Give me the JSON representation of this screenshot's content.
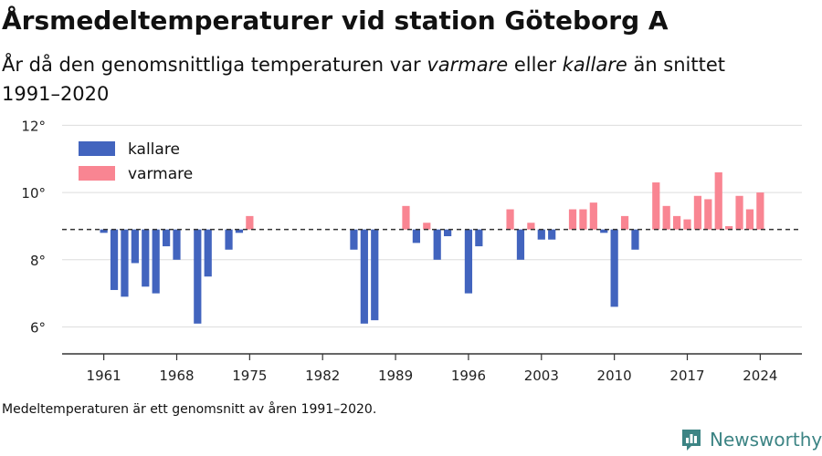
{
  "header": {
    "title": "Årsmedeltemperaturer vid station Göteborg A",
    "subtitle_parts": [
      "År då den genomsnittliga temperaturen var ",
      "varmare",
      " eller ",
      "kallare",
      " än snittet 1991–2020"
    ]
  },
  "footer": {
    "note": "Medeltemperaturen är ett genomsnitt av åren 1991–2020.",
    "brand": "Newsworthy"
  },
  "colors": {
    "kallare": "#4264be",
    "varmare": "#f98592",
    "grid": "#dddddd",
    "axis": "#333333",
    "brand": "#3c8484"
  },
  "icons": {
    "brand_logo": "bar-chart-logo-icon"
  },
  "chart_data": {
    "type": "bar",
    "title": "Årsmedeltemperaturer vid station Göteborg A",
    "baseline": 8.9,
    "baseline_style": "dashed",
    "ylim": [
      5.2,
      12.2
    ],
    "yticks": [
      6,
      8,
      10,
      12
    ],
    "ytick_labels": [
      "6°",
      "8°",
      "10°",
      "12°"
    ],
    "xlim": [
      1957,
      2028
    ],
    "xticks": [
      1961,
      1968,
      1975,
      1982,
      1989,
      1996,
      2003,
      2010,
      2017,
      2024
    ],
    "xtick_labels": [
      "1961",
      "1968",
      "1975",
      "1982",
      "1989",
      "1996",
      "2003",
      "2010",
      "2017",
      "2024"
    ],
    "grid": true,
    "legend": {
      "position": "top-left",
      "entries": [
        {
          "name": "kallare",
          "color": "#4264be"
        },
        {
          "name": "varmare",
          "color": "#f98592"
        }
      ]
    },
    "series": [
      {
        "name": "kallare",
        "x": [
          1961,
          1962,
          1963,
          1964,
          1965,
          1966,
          1967,
          1968,
          1970,
          1971,
          1973,
          1974,
          1985,
          1986,
          1987,
          1991,
          1993,
          1994,
          1996,
          1997,
          2001,
          2003,
          2004,
          2009,
          2010,
          2012
        ],
        "values": [
          8.8,
          7.1,
          6.9,
          7.9,
          7.2,
          7.0,
          8.4,
          8.0,
          6.1,
          7.5,
          8.3,
          8.8,
          8.3,
          6.1,
          6.2,
          8.5,
          8.0,
          8.7,
          7.0,
          8.4,
          8.0,
          8.6,
          8.6,
          8.8,
          6.6,
          8.3
        ]
      },
      {
        "name": "varmare",
        "x": [
          1975,
          1990,
          1992,
          2000,
          2002,
          2006,
          2007,
          2008,
          2011,
          2014,
          2015,
          2016,
          2017,
          2018,
          2019,
          2020,
          2021,
          2022,
          2023,
          2024
        ],
        "values": [
          9.3,
          9.6,
          9.1,
          9.5,
          9.1,
          9.5,
          9.5,
          9.7,
          9.3,
          10.3,
          9.6,
          9.3,
          9.2,
          9.9,
          9.8,
          10.6,
          9.0,
          9.9,
          9.5,
          10.0
        ]
      }
    ]
  }
}
